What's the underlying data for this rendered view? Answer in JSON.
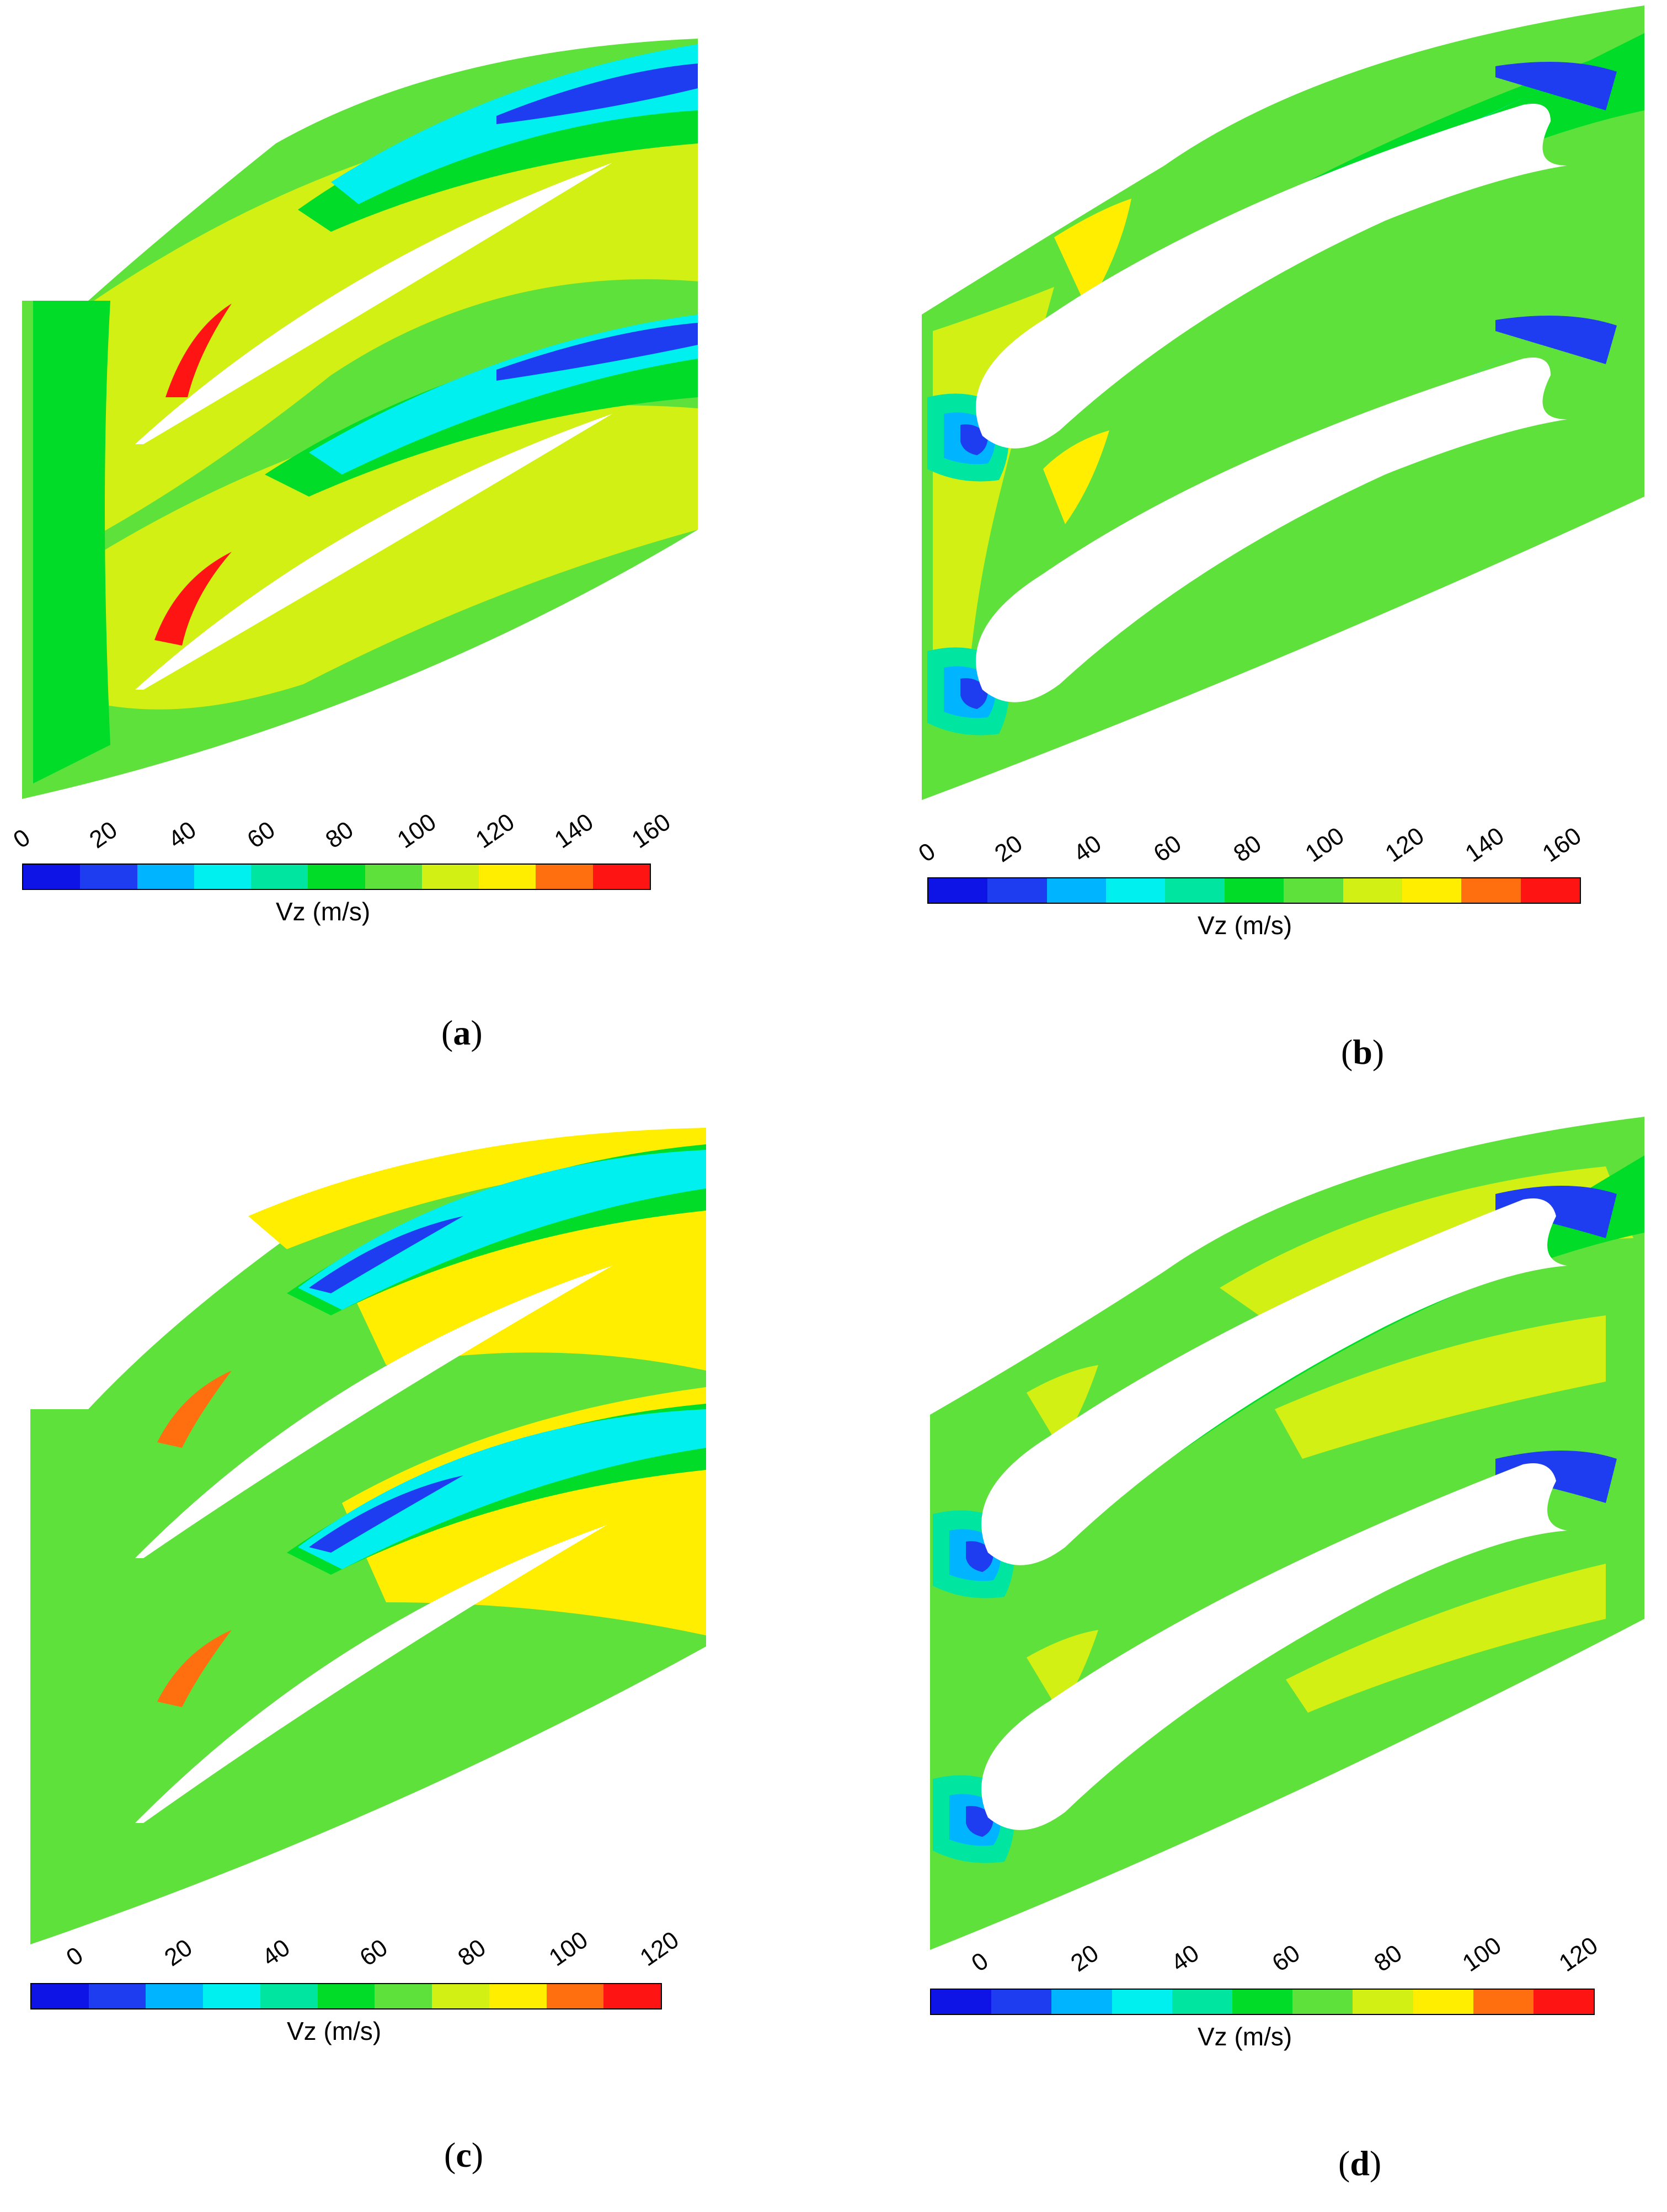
{
  "chart_data": [
    {
      "type": "heatmap",
      "panel_label": "a",
      "colorbar_label": "Vz (m/s)",
      "ticks": [
        "0",
        "20",
        "40",
        "60",
        "80",
        "100",
        "120",
        "140",
        "160"
      ],
      "range": [
        0,
        160
      ],
      "colors": [
        "#0f14e6",
        "#1e3cf0",
        "#00b4ff",
        "#00f0f0",
        "#00e6a0",
        "#00dc28",
        "#5fe13c",
        "#d2f014",
        "#ffee00",
        "#ff6e0f",
        "#ff1414"
      ]
    },
    {
      "type": "heatmap",
      "panel_label": "b",
      "colorbar_label": "Vz (m/s)",
      "ticks": [
        "0",
        "20",
        "40",
        "60",
        "80",
        "100",
        "120",
        "140",
        "160"
      ],
      "range": [
        0,
        160
      ],
      "colors": [
        "#0f14e6",
        "#1e3cf0",
        "#00b4ff",
        "#00f0f0",
        "#00e6a0",
        "#00dc28",
        "#5fe13c",
        "#d2f014",
        "#ffee00",
        "#ff6e0f",
        "#ff1414"
      ]
    },
    {
      "type": "heatmap",
      "panel_label": "c",
      "colorbar_label": "Vz (m/s)",
      "ticks": [
        "0",
        "20",
        "40",
        "60",
        "80",
        "100",
        "120"
      ],
      "range": [
        -10,
        120
      ],
      "colors": [
        "#0f14e6",
        "#1e3cf0",
        "#00b4ff",
        "#00f0f0",
        "#00e6a0",
        "#00dc28",
        "#5fe13c",
        "#d2f014",
        "#ffee00",
        "#ff6e0f",
        "#ff1414"
      ]
    },
    {
      "type": "heatmap",
      "panel_label": "d",
      "colorbar_label": "Vz (m/s)",
      "ticks": [
        "0",
        "20",
        "40",
        "60",
        "80",
        "100",
        "120"
      ],
      "range": [
        -10,
        120
      ],
      "colors": [
        "#0f14e6",
        "#1e3cf0",
        "#00b4ff",
        "#00f0f0",
        "#00e6a0",
        "#00dc28",
        "#5fe13c",
        "#d2f014",
        "#ffee00",
        "#ff6e0f",
        "#ff1414"
      ]
    }
  ]
}
